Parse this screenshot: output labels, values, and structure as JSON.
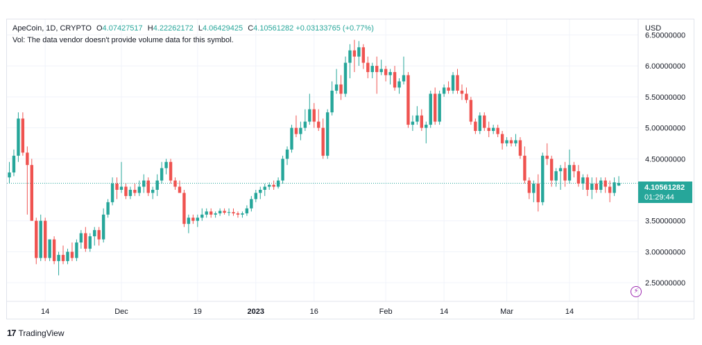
{
  "legend": {
    "symbol": "ApeCoin, 1D, CRYPTO",
    "open_label": "O",
    "open": "4.07427517",
    "high_label": "H",
    "high": "4.22262172",
    "low_label": "L",
    "low": "4.06429425",
    "close_label": "C",
    "close": "4.10561282",
    "change": "+0.03133765 (+0.77%)",
    "volume_note": "Vol: The data vendor doesn't provide volume data for this symbol."
  },
  "axis": {
    "currency": "USD",
    "y_ticks": [
      "6.50000000",
      "6.00000000",
      "5.50000000",
      "5.00000000",
      "4.50000000",
      "3.50000000",
      "3.00000000",
      "2.50000000"
    ],
    "y_tick_values": [
      6.5,
      6.0,
      5.5,
      5.0,
      4.5,
      3.5,
      3.0,
      2.5
    ],
    "x_ticks": [
      "14",
      "Dec",
      "19",
      "2023",
      "16",
      "Feb",
      "14",
      "Mar",
      "14"
    ]
  },
  "price_tag": {
    "price": "4.10561282",
    "countdown": "01:29:44"
  },
  "colors": {
    "up": "#26a69a",
    "down": "#ef5350",
    "grid": "#f0f3fa"
  },
  "footer": {
    "brand": "TradingView",
    "logo_glyph": "17"
  },
  "chart_data": {
    "type": "candlestick",
    "title": "ApeCoin, 1D, CRYPTO",
    "ylabel": "USD",
    "ylim": [
      2.2,
      6.75
    ],
    "grid": true,
    "last_price": 4.10561282,
    "x_ticks": [
      {
        "label": "14",
        "index": 8
      },
      {
        "label": "Dec",
        "index": 25
      },
      {
        "label": "19",
        "index": 42
      },
      {
        "label": "2023",
        "index": 55
      },
      {
        "label": "16",
        "index": 68
      },
      {
        "label": "Feb",
        "index": 84
      },
      {
        "label": "14",
        "index": 97
      },
      {
        "label": "Mar",
        "index": 111
      },
      {
        "label": "14",
        "index": 125
      }
    ],
    "candles": [
      [
        4.2,
        4.45,
        4.1,
        4.28
      ],
      [
        4.28,
        4.65,
        4.22,
        4.55
      ],
      [
        4.55,
        5.25,
        4.45,
        5.15
      ],
      [
        5.15,
        5.25,
        4.55,
        4.6
      ],
      [
        4.6,
        4.7,
        3.6,
        4.4
      ],
      [
        4.4,
        4.5,
        3.5,
        3.5
      ],
      [
        3.5,
        3.55,
        2.8,
        2.9
      ],
      [
        2.9,
        3.6,
        2.85,
        3.5
      ],
      [
        3.5,
        3.55,
        2.85,
        2.9
      ],
      [
        2.9,
        3.2,
        2.85,
        3.2
      ],
      [
        3.2,
        3.25,
        2.8,
        2.85
      ],
      [
        2.85,
        3.0,
        2.62,
        2.95
      ],
      [
        2.95,
        3.1,
        2.8,
        2.85
      ],
      [
        2.85,
        3.05,
        2.8,
        3.0
      ],
      [
        3.0,
        3.15,
        2.85,
        2.9
      ],
      [
        2.9,
        3.2,
        2.85,
        3.15
      ],
      [
        3.15,
        3.35,
        3.05,
        3.3
      ],
      [
        3.3,
        3.4,
        3.0,
        3.05
      ],
      [
        3.05,
        3.3,
        3.0,
        3.25
      ],
      [
        3.25,
        3.4,
        3.1,
        3.35
      ],
      [
        3.35,
        3.4,
        3.1,
        3.2
      ],
      [
        3.2,
        3.7,
        3.15,
        3.6
      ],
      [
        3.6,
        3.85,
        3.55,
        3.8
      ],
      [
        3.8,
        4.2,
        3.75,
        4.1
      ],
      [
        4.1,
        4.2,
        3.85,
        4.0
      ],
      [
        4.0,
        4.45,
        3.95,
        4.05
      ],
      [
        4.05,
        4.1,
        3.85,
        3.9
      ],
      [
        3.9,
        4.05,
        3.85,
        4.0
      ],
      [
        4.0,
        4.1,
        3.9,
        3.95
      ],
      [
        3.95,
        4.15,
        3.9,
        4.05
      ],
      [
        4.05,
        4.25,
        3.95,
        4.15
      ],
      [
        4.15,
        4.2,
        3.9,
        3.95
      ],
      [
        3.95,
        4.05,
        3.85,
        4.0
      ],
      [
        4.0,
        4.25,
        3.9,
        4.15
      ],
      [
        4.15,
        4.45,
        4.1,
        4.35
      ],
      [
        4.35,
        4.5,
        4.25,
        4.45
      ],
      [
        4.45,
        4.5,
        4.1,
        4.15
      ],
      [
        4.15,
        4.2,
        4.0,
        4.05
      ],
      [
        4.05,
        4.15,
        3.95,
        3.95
      ],
      [
        3.95,
        4.0,
        3.4,
        3.45
      ],
      [
        3.45,
        3.6,
        3.3,
        3.55
      ],
      [
        3.55,
        3.6,
        3.45,
        3.5
      ],
      [
        3.5,
        3.6,
        3.4,
        3.55
      ],
      [
        3.55,
        3.7,
        3.5,
        3.6
      ],
      [
        3.6,
        3.7,
        3.55,
        3.65
      ],
      [
        3.65,
        3.7,
        3.55,
        3.6
      ],
      [
        3.6,
        3.65,
        3.55,
        3.62
      ],
      [
        3.62,
        3.7,
        3.58,
        3.66
      ],
      [
        3.66,
        3.7,
        3.6,
        3.63
      ],
      [
        3.63,
        3.7,
        3.58,
        3.64
      ],
      [
        3.64,
        3.7,
        3.58,
        3.62
      ],
      [
        3.62,
        3.65,
        3.55,
        3.6
      ],
      [
        3.6,
        3.65,
        3.55,
        3.62
      ],
      [
        3.62,
        3.75,
        3.58,
        3.7
      ],
      [
        3.7,
        3.9,
        3.65,
        3.85
      ],
      [
        3.85,
        4.0,
        3.8,
        3.95
      ],
      [
        3.95,
        4.05,
        3.85,
        4.0
      ],
      [
        4.0,
        4.1,
        3.9,
        4.05
      ],
      [
        4.05,
        4.12,
        4.0,
        4.08
      ],
      [
        4.08,
        4.15,
        4.0,
        4.05
      ],
      [
        4.05,
        4.2,
        4.02,
        4.15
      ],
      [
        4.15,
        4.55,
        4.1,
        4.5
      ],
      [
        4.5,
        4.7,
        4.4,
        4.65
      ],
      [
        4.65,
        5.05,
        4.6,
        5.0
      ],
      [
        5.0,
        5.2,
        4.85,
        4.9
      ],
      [
        4.9,
        5.1,
        4.8,
        5.0
      ],
      [
        5.0,
        5.3,
        4.95,
        5.1
      ],
      [
        5.1,
        5.55,
        5.05,
        5.3
      ],
      [
        5.3,
        5.4,
        5.0,
        5.1
      ],
      [
        5.1,
        5.3,
        4.95,
        5.0
      ],
      [
        5.0,
        5.15,
        4.5,
        4.55
      ],
      [
        4.55,
        5.3,
        4.5,
        5.25
      ],
      [
        5.25,
        5.75,
        5.2,
        5.6
      ],
      [
        5.6,
        5.95,
        5.55,
        5.7
      ],
      [
        5.7,
        5.85,
        5.45,
        5.55
      ],
      [
        5.55,
        6.15,
        5.5,
        6.05
      ],
      [
        6.05,
        6.35,
        5.8,
        6.25
      ],
      [
        6.25,
        6.42,
        5.9,
        6.15
      ],
      [
        6.15,
        6.4,
        6.0,
        6.3
      ],
      [
        6.3,
        6.35,
        5.95,
        6.05
      ],
      [
        6.05,
        6.15,
        5.8,
        5.9
      ],
      [
        5.9,
        6.05,
        5.8,
        6.0
      ],
      [
        6.0,
        6.15,
        5.55,
        5.9
      ],
      [
        5.9,
        6.1,
        5.85,
        5.95
      ],
      [
        5.95,
        6.0,
        5.75,
        5.85
      ],
      [
        5.85,
        5.95,
        5.7,
        5.9
      ],
      [
        5.9,
        6.0,
        5.6,
        5.65
      ],
      [
        5.65,
        5.8,
        5.55,
        5.75
      ],
      [
        5.75,
        6.15,
        5.7,
        5.85
      ],
      [
        5.85,
        5.9,
        5.0,
        5.05
      ],
      [
        5.05,
        5.2,
        4.95,
        5.1
      ],
      [
        5.1,
        5.35,
        5.05,
        5.2
      ],
      [
        5.2,
        5.3,
        4.95,
        5.0
      ],
      [
        5.0,
        5.1,
        4.75,
        5.05
      ],
      [
        5.05,
        5.6,
        5.0,
        5.55
      ],
      [
        5.55,
        5.65,
        5.05,
        5.1
      ],
      [
        5.1,
        5.6,
        5.05,
        5.55
      ],
      [
        5.55,
        5.7,
        5.5,
        5.65
      ],
      [
        5.65,
        5.75,
        5.55,
        5.6
      ],
      [
        5.6,
        5.9,
        5.55,
        5.85
      ],
      [
        5.85,
        5.95,
        5.55,
        5.6
      ],
      [
        5.6,
        5.7,
        5.45,
        5.55
      ],
      [
        5.55,
        5.65,
        5.4,
        5.45
      ],
      [
        5.45,
        5.5,
        5.05,
        5.1
      ],
      [
        5.1,
        5.15,
        4.9,
        4.95
      ],
      [
        4.95,
        5.25,
        4.9,
        5.2
      ],
      [
        5.2,
        5.25,
        4.95,
        5.0
      ],
      [
        5.0,
        5.1,
        4.85,
        4.95
      ],
      [
        4.95,
        5.05,
        4.9,
        5.0
      ],
      [
        5.0,
        5.05,
        4.85,
        4.9
      ],
      [
        4.9,
        4.95,
        4.65,
        4.75
      ],
      [
        4.75,
        4.85,
        4.7,
        4.8
      ],
      [
        4.8,
        4.85,
        4.7,
        4.75
      ],
      [
        4.75,
        4.9,
        4.7,
        4.8
      ],
      [
        4.8,
        4.85,
        4.5,
        4.55
      ],
      [
        4.55,
        4.7,
        4.1,
        4.15
      ],
      [
        4.15,
        4.2,
        3.85,
        3.95
      ],
      [
        3.95,
        4.15,
        3.8,
        4.1
      ],
      [
        4.1,
        4.25,
        3.65,
        3.8
      ],
      [
        3.8,
        4.6,
        3.75,
        4.55
      ],
      [
        4.55,
        4.75,
        4.4,
        4.5
      ],
      [
        4.5,
        4.55,
        4.05,
        4.15
      ],
      [
        4.15,
        4.35,
        4.05,
        4.3
      ],
      [
        4.3,
        4.4,
        4.0,
        4.35
      ],
      [
        4.35,
        4.45,
        4.05,
        4.15
      ],
      [
        4.15,
        4.65,
        4.1,
        4.4
      ],
      [
        4.4,
        4.45,
        4.2,
        4.3
      ],
      [
        4.3,
        4.4,
        4.05,
        4.1
      ],
      [
        4.1,
        4.25,
        4.0,
        4.2
      ],
      [
        4.2,
        4.25,
        3.9,
        4.0
      ],
      [
        4.0,
        4.2,
        3.85,
        4.1
      ],
      [
        4.1,
        4.2,
        3.95,
        4.0
      ],
      [
        4.0,
        4.2,
        3.95,
        4.15
      ],
      [
        4.15,
        4.2,
        3.95,
        4.05
      ],
      [
        4.05,
        4.15,
        3.8,
        3.95
      ],
      [
        3.95,
        4.2,
        3.9,
        4.12
      ],
      [
        4.07,
        4.22,
        4.06,
        4.11
      ]
    ]
  }
}
